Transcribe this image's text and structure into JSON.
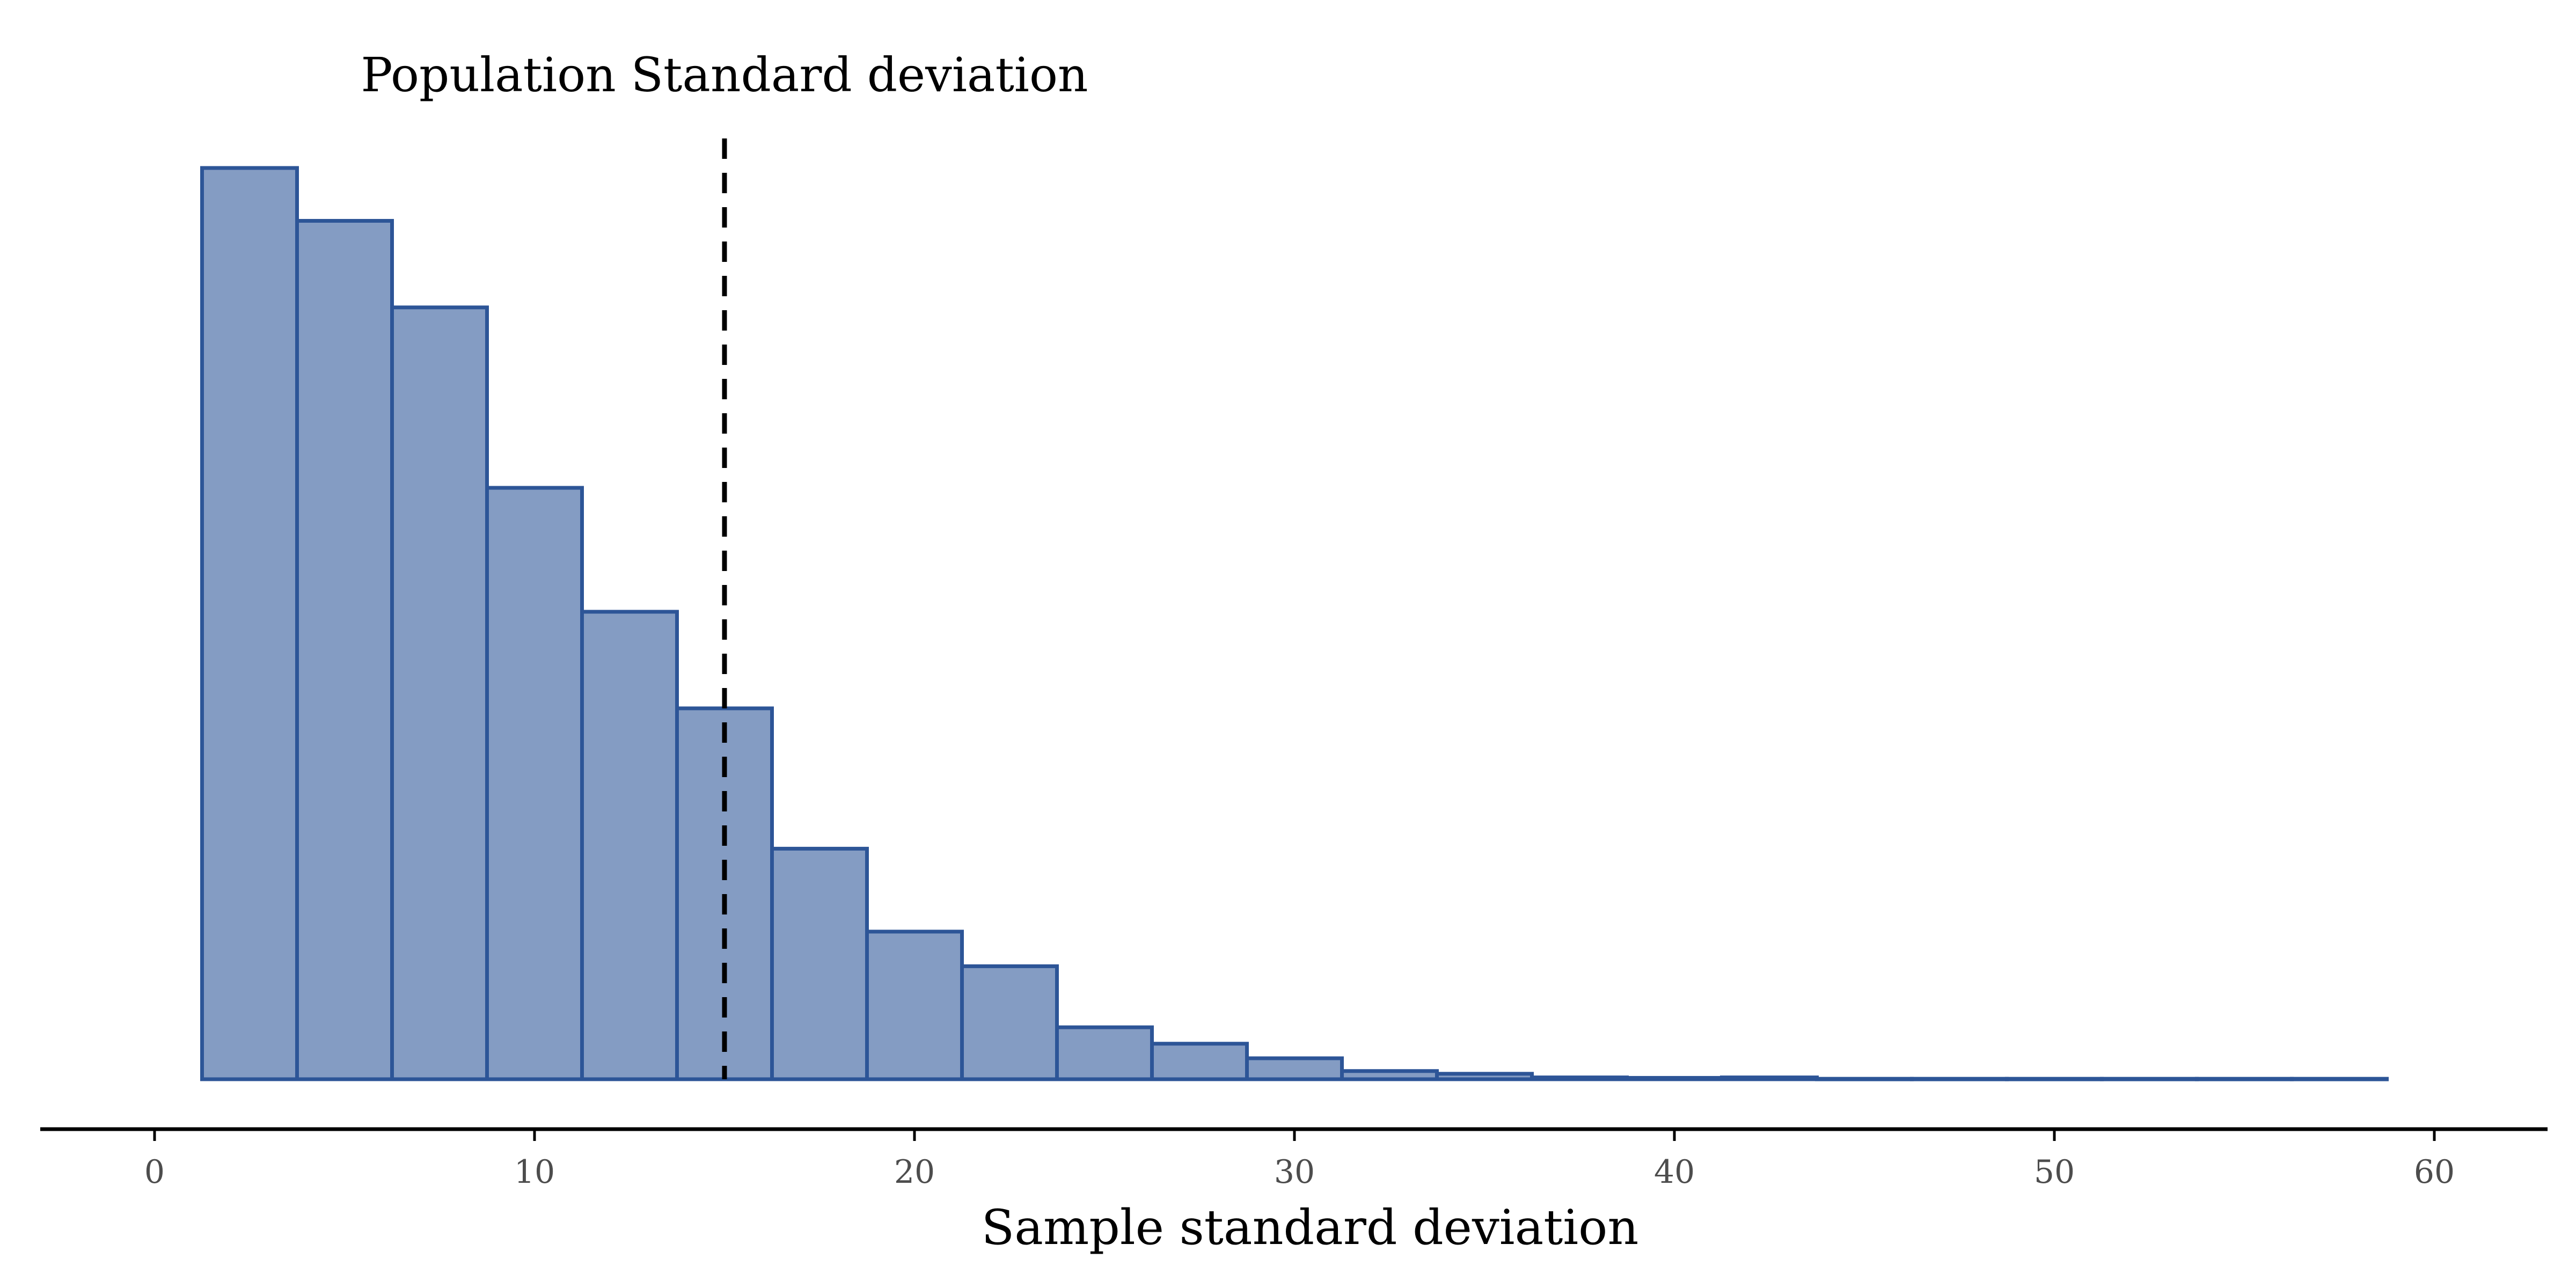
{
  "chart_data": {
    "type": "bar",
    "title": "",
    "xlabel": "Sample standard deviation",
    "ylabel": "",
    "xlim": [
      -3,
      63
    ],
    "x_ticks": [
      0,
      10,
      20,
      30,
      40,
      50,
      60
    ],
    "x_tick_labels": [
      "0",
      "10",
      "20",
      "30",
      "40",
      "50",
      "60"
    ],
    "y_axis_shown": false,
    "grid": false,
    "legend": "none",
    "bin_width": 2.5,
    "bins": [
      {
        "x0": 1.25,
        "x1": 3.75,
        "value": 1000
      },
      {
        "x0": 3.75,
        "x1": 6.25,
        "value": 942
      },
      {
        "x0": 6.25,
        "x1": 8.75,
        "value": 847
      },
      {
        "x0": 8.75,
        "x1": 11.25,
        "value": 649
      },
      {
        "x0": 11.25,
        "x1": 13.75,
        "value": 513
      },
      {
        "x0": 13.75,
        "x1": 16.25,
        "value": 407
      },
      {
        "x0": 16.25,
        "x1": 18.75,
        "value": 253
      },
      {
        "x0": 18.75,
        "x1": 21.25,
        "value": 162
      },
      {
        "x0": 21.25,
        "x1": 23.75,
        "value": 124
      },
      {
        "x0": 23.75,
        "x1": 26.25,
        "value": 57
      },
      {
        "x0": 26.25,
        "x1": 28.75,
        "value": 39
      },
      {
        "x0": 28.75,
        "x1": 31.25,
        "value": 23
      },
      {
        "x0": 31.25,
        "x1": 33.75,
        "value": 9
      },
      {
        "x0": 33.75,
        "x1": 36.25,
        "value": 6
      },
      {
        "x0": 36.25,
        "x1": 38.75,
        "value": 2
      },
      {
        "x0": 38.75,
        "x1": 41.25,
        "value": 1.5
      },
      {
        "x0": 41.25,
        "x1": 43.75,
        "value": 2
      },
      {
        "x0": 43.75,
        "x1": 46.25,
        "value": 0.5
      },
      {
        "x0": 46.25,
        "x1": 48.75,
        "value": 0.5
      },
      {
        "x0": 48.75,
        "x1": 51.25,
        "value": 0.5
      },
      {
        "x0": 51.25,
        "x1": 53.75,
        "value": 0.5
      },
      {
        "x0": 53.75,
        "x1": 56.25,
        "value": 0.5
      },
      {
        "x0": 56.25,
        "x1": 58.75,
        "value": 0.5
      }
    ],
    "reference_line": {
      "x": 15,
      "label": "Population Standard deviation",
      "style": "dashed",
      "color": "#000000"
    },
    "colors": {
      "bar_fill": "#849cc3",
      "bar_stroke": "#2d5597"
    }
  }
}
